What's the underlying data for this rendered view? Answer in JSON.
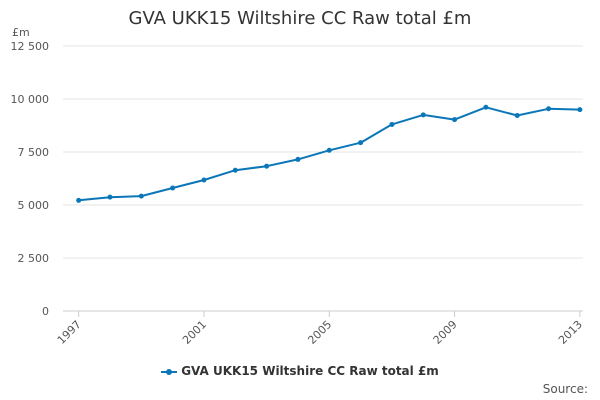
{
  "chart_data": {
    "type": "line",
    "title": "GVA UKK15 Wiltshire CC Raw total £m",
    "ylabel": "£m",
    "xlabel": "",
    "ylim": [
      0,
      12500
    ],
    "yticks": [
      0,
      2500,
      5000,
      7500,
      10000,
      12500
    ],
    "ytick_labels": [
      "0",
      "2 500",
      "5 000",
      "7 500",
      "10 000",
      "12 500"
    ],
    "xticks": [
      1997,
      2001,
      2005,
      2009,
      2013
    ],
    "xtick_labels": [
      "1997",
      "2001",
      "2005",
      "2009",
      "2013"
    ],
    "x": [
      1997,
      1998,
      1999,
      2000,
      2001,
      2002,
      2003,
      2004,
      2005,
      2006,
      2007,
      2008,
      2009,
      2010,
      2011,
      2012,
      2013
    ],
    "series": [
      {
        "name": "GVA UKK15 Wiltshire CC Raw total £m",
        "color": "#0b76b8",
        "values": [
          5220,
          5370,
          5420,
          5800,
          6180,
          6640,
          6830,
          7150,
          7580,
          7940,
          8800,
          9250,
          9030,
          9610,
          9220,
          9540,
          9500
        ]
      }
    ],
    "grid": true,
    "legend_position": "bottom-center"
  },
  "source_label": "Source:"
}
